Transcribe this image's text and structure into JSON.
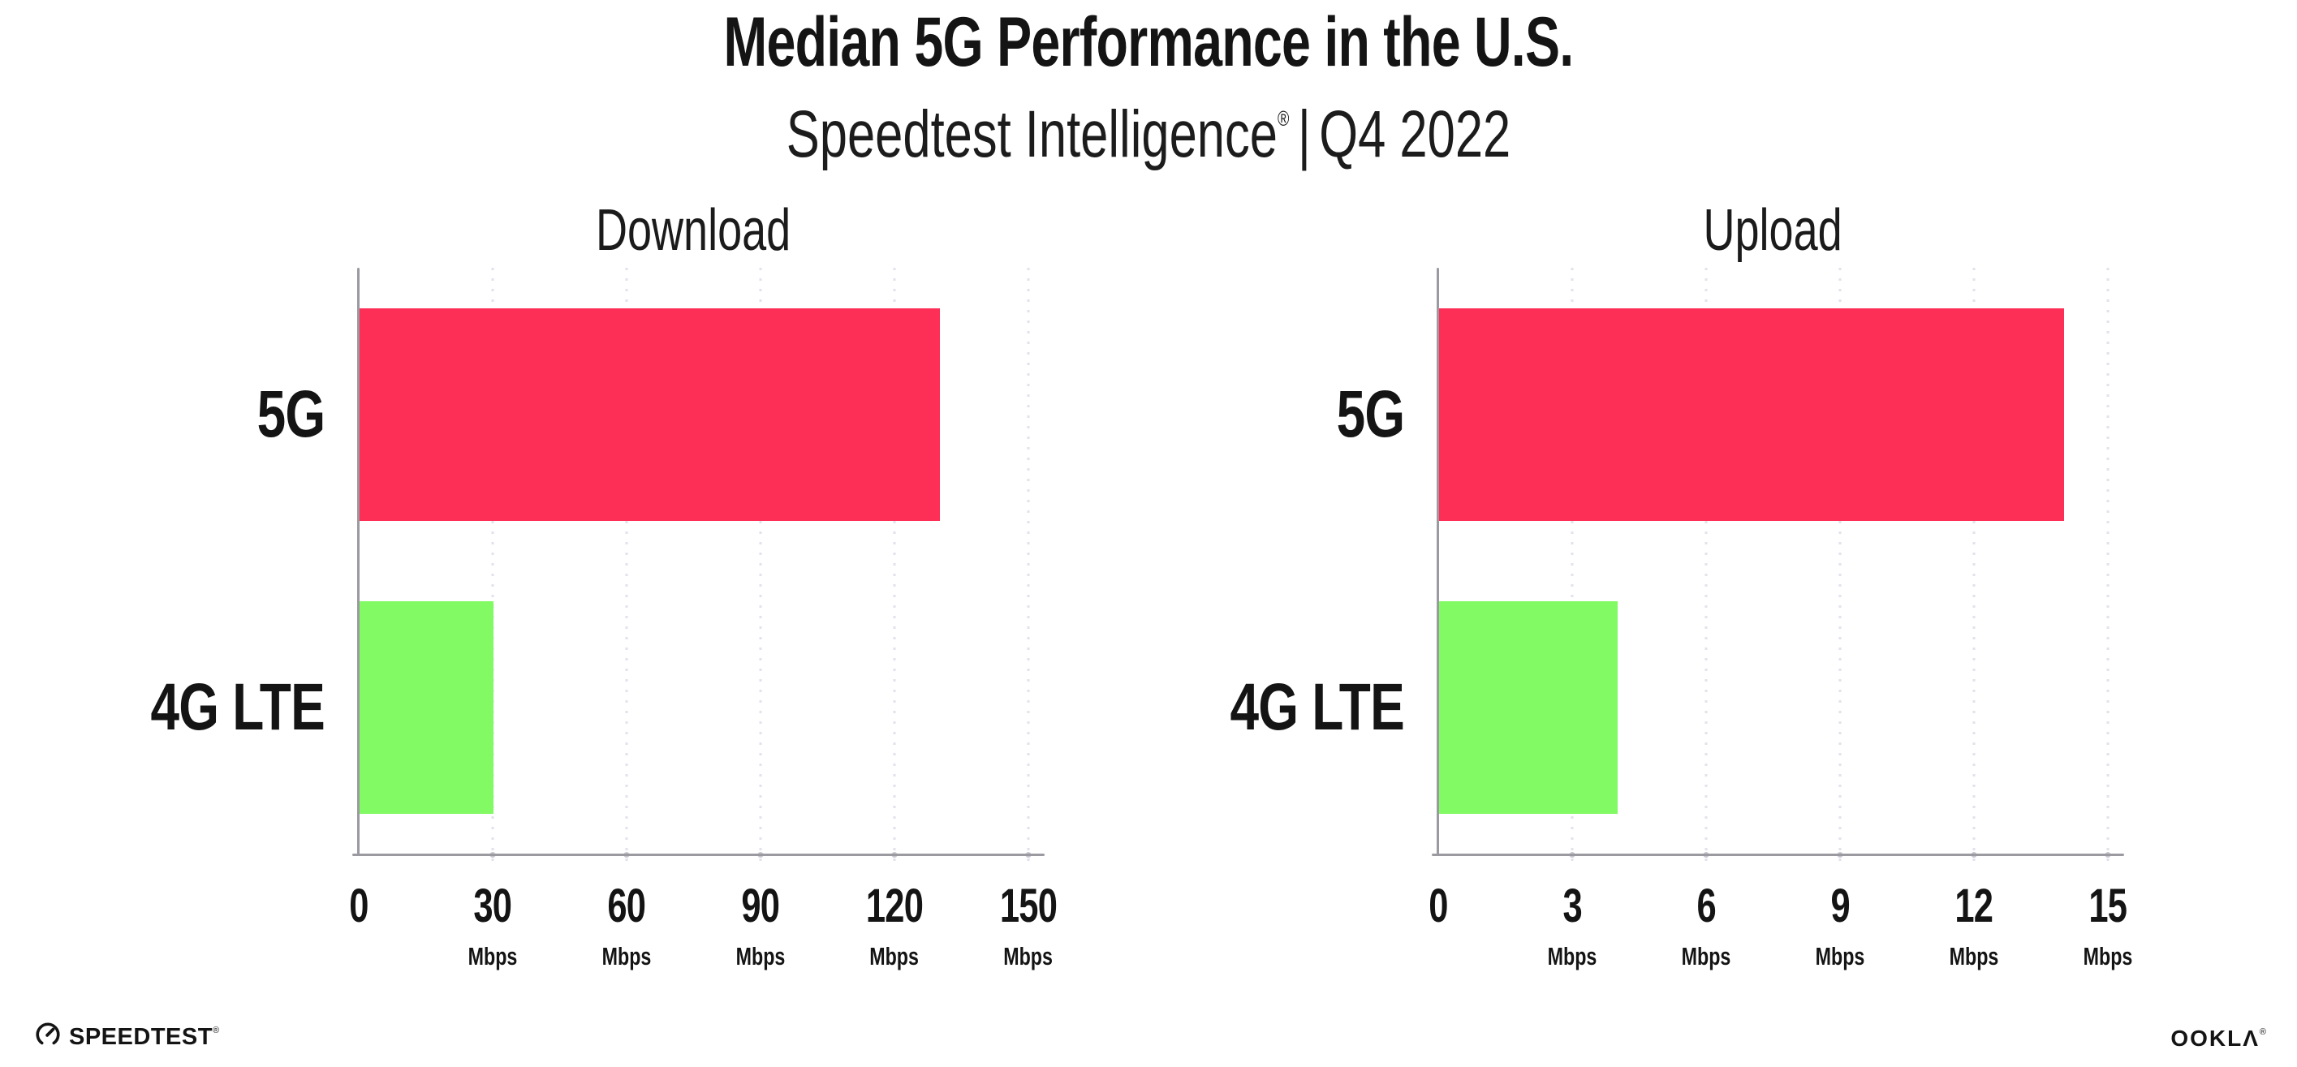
{
  "header": {
    "title": "Median 5G Performance in the U.S.",
    "subtitle_brand": "Speedtest Intelligence",
    "subtitle_mark": "®",
    "subtitle_separator": "|",
    "subtitle_period": "Q4 2022"
  },
  "chart_data": [
    {
      "type": "bar",
      "orientation": "horizontal",
      "title": "Download",
      "categories": [
        "5G",
        "4G LTE"
      ],
      "values": [
        130,
        30
      ],
      "unit": "Mbps",
      "xlim": [
        0,
        150
      ],
      "xticks": [
        0,
        30,
        60,
        90,
        120,
        150
      ],
      "grid": true,
      "bar_colors": [
        "#fd2f57",
        "#81fa64"
      ]
    },
    {
      "type": "bar",
      "orientation": "horizontal",
      "title": "Upload",
      "categories": [
        "5G",
        "4G LTE"
      ],
      "values": [
        14,
        4
      ],
      "unit": "Mbps",
      "xlim": [
        0,
        15
      ],
      "xticks": [
        0,
        3,
        6,
        9,
        12,
        15
      ],
      "grid": true,
      "bar_colors": [
        "#fd2f57",
        "#81fa64"
      ]
    }
  ],
  "colors": {
    "bar_5g_red": "#fd2f57",
    "bar_4g_green": "#81fa64",
    "axis_gray": "#9a9aa0",
    "gridline_gray": "#e2e2ec",
    "text_black": "#141414"
  },
  "footer": {
    "speedtest_label": "SPEEDTEST",
    "speedtest_mark": "®",
    "ookla_label": "OOKLΛ",
    "ookla_mark": "®"
  }
}
